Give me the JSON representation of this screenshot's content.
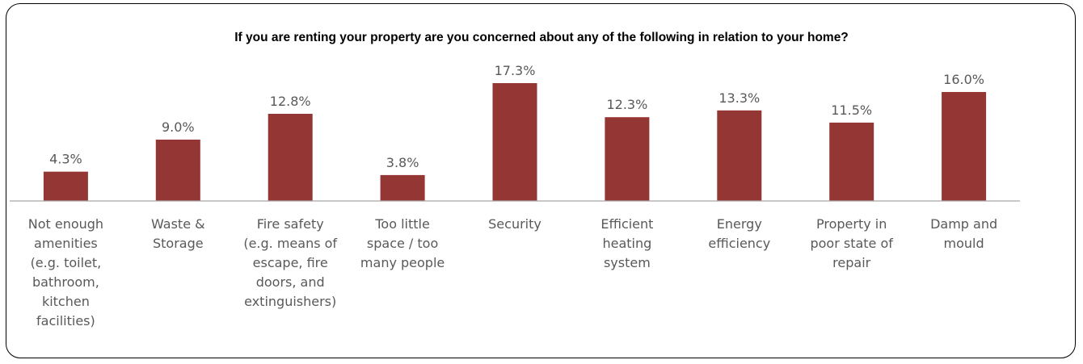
{
  "chart_data": {
    "type": "bar",
    "title": "If you are renting your property are you concerned about any of the following in relation to your home?",
    "categories": [
      [
        "Not enough",
        "amenities",
        "(e.g. toilet,",
        "bathroom,",
        "kitchen",
        "facilities)"
      ],
      [
        "Waste &",
        "Storage"
      ],
      [
        "Fire safety",
        "(e.g. means of",
        "escape, fire",
        "doors, and",
        "extinguishers)"
      ],
      [
        "Too little",
        "space / too",
        "many people"
      ],
      [
        "Security"
      ],
      [
        "Efficient",
        "heating",
        "system"
      ],
      [
        "Energy",
        "efficiency"
      ],
      [
        "Property in",
        "poor state of",
        "repair"
      ],
      [
        "Damp and",
        "mould"
      ]
    ],
    "values": [
      4.3,
      9.0,
      12.8,
      3.8,
      17.3,
      12.3,
      13.3,
      11.5,
      16.0
    ],
    "value_labels": [
      "4.3%",
      "9.0%",
      "12.8%",
      "3.8%",
      "17.3%",
      "12.3%",
      "13.3%",
      "11.5%",
      "16.0%"
    ],
    "ylim": [
      0,
      17.3
    ],
    "bar_color": "#943634",
    "axis_color": "#a6a6a6",
    "label_color": "#595959",
    "grid": false,
    "legend": "none"
  }
}
